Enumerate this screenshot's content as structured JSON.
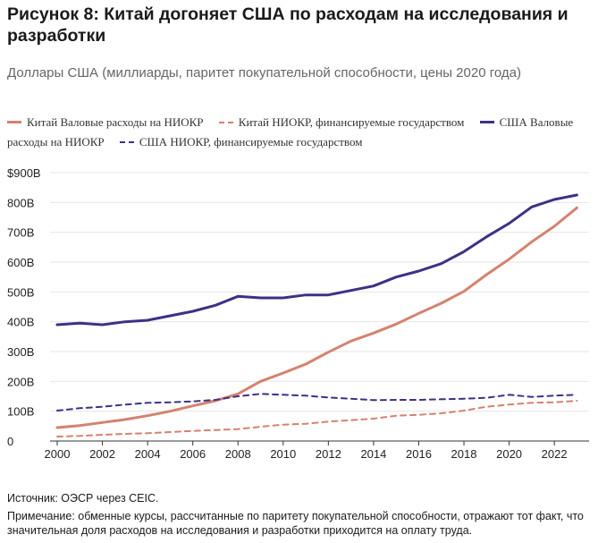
{
  "figure": {
    "title": "Рисунок 8: Китай догоняет США по расходам на исследования и разработки",
    "subtitle": "Доллары США (миллиарды, паритет покупательной способности, цены 2020 года)",
    "source": "Источник: ОЭСР через CEIC.",
    "note": "Примечание: обменные курсы, рассчитанные по паритету покупательной способности, отражают тот факт, что значительная доля расходов на исследования и разработки приходится на оплату труда."
  },
  "chart_data": {
    "type": "line",
    "title": "Рисунок 8: Китай догоняет США по расходам на исследования и разработки",
    "subtitle": "Доллары США (миллиарды, паритет покупательной способности, цены 2020 года)",
    "xlabel": "",
    "ylabel": "",
    "x": [
      2000,
      2001,
      2002,
      2003,
      2004,
      2005,
      2006,
      2007,
      2008,
      2009,
      2010,
      2011,
      2012,
      2013,
      2014,
      2015,
      2016,
      2017,
      2018,
      2019,
      2020,
      2021,
      2022,
      2023
    ],
    "xticks": [
      "2000",
      "2002",
      "2004",
      "2006",
      "2008",
      "2010",
      "2012",
      "2014",
      "2016",
      "2018",
      "2020",
      "2022"
    ],
    "xlim": [
      2000,
      2023.3
    ],
    "yticks": [
      {
        "value": 0,
        "label": "0"
      },
      {
        "value": 100,
        "label": "100B"
      },
      {
        "value": 200,
        "label": "200B"
      },
      {
        "value": 300,
        "label": "300B"
      },
      {
        "value": 400,
        "label": "400B"
      },
      {
        "value": 500,
        "label": "500B"
      },
      {
        "value": 600,
        "label": "600B"
      },
      {
        "value": 700,
        "label": "700B"
      },
      {
        "value": 800,
        "label": "800B"
      },
      {
        "value": 900,
        "label": "$900B"
      }
    ],
    "ylim": [
      0,
      900
    ],
    "grid": true,
    "legend_position": "top",
    "series": [
      {
        "name": "Китай Валовые расходы на НИОКР",
        "color": "#d4826e",
        "style": "solid",
        "values": [
          45,
          52,
          62,
          72,
          85,
          100,
          118,
          135,
          158,
          200,
          228,
          258,
          298,
          335,
          362,
          392,
          428,
          462,
          502,
          558,
          610,
          668,
          720,
          782
        ]
      },
      {
        "name": "Китай НИОКР, финансируемые государством",
        "color": "#d4826e",
        "style": "dashed",
        "values": [
          15,
          17,
          21,
          24,
          26,
          30,
          34,
          37,
          40,
          48,
          55,
          58,
          65,
          70,
          75,
          85,
          88,
          93,
          102,
          115,
          122,
          128,
          130,
          135
        ]
      },
      {
        "name": "США Валовые расходы на НИОКР",
        "color": "#3b3285",
        "style": "solid",
        "values": [
          390,
          395,
          390,
          400,
          405,
          420,
          435,
          455,
          485,
          480,
          480,
          490,
          490,
          505,
          520,
          550,
          570,
          595,
          635,
          685,
          730,
          785,
          810,
          825
        ]
      },
      {
        "name": "США НИОКР, финансируемые государством",
        "color": "#3b3285",
        "style": "dashed",
        "values": [
          102,
          110,
          115,
          122,
          128,
          130,
          133,
          138,
          150,
          158,
          155,
          152,
          146,
          142,
          137,
          138,
          138,
          140,
          142,
          145,
          155,
          148,
          152,
          155
        ]
      }
    ]
  }
}
